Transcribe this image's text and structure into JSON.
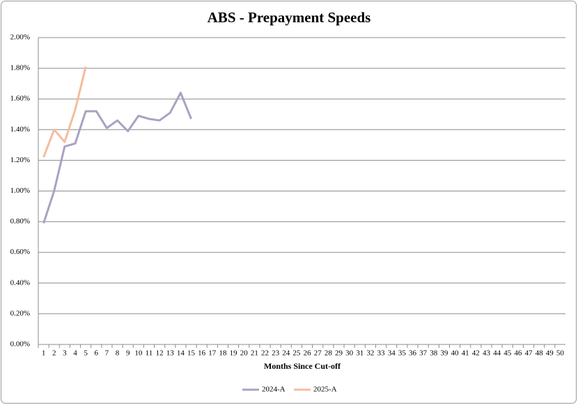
{
  "chart_data": {
    "type": "line",
    "title": "ABS - Prepayment Speeds",
    "x_label": "Months Since Cut-off",
    "categories": [
      1,
      2,
      3,
      4,
      5,
      6,
      7,
      8,
      9,
      10,
      11,
      12,
      13,
      14,
      15,
      16,
      17,
      18,
      19,
      20,
      21,
      22,
      23,
      24,
      25,
      26,
      27,
      28,
      29,
      30,
      31,
      32,
      33,
      34,
      35,
      36,
      37,
      38,
      39,
      40,
      41,
      42,
      43,
      44,
      45,
      46,
      47,
      48,
      49,
      50
    ],
    "series": [
      {
        "name": "2024-A",
        "color": "#a9a1c2",
        "values": [
          0.79,
          1.0,
          1.29,
          1.31,
          1.52,
          1.52,
          1.41,
          1.46,
          1.39,
          1.49,
          1.47,
          1.46,
          1.51,
          1.64,
          1.47,
          null,
          null,
          null,
          null,
          null,
          null,
          null,
          null,
          null,
          null,
          null,
          null,
          null,
          null,
          null,
          null,
          null,
          null,
          null,
          null,
          null,
          null,
          null,
          null,
          null,
          null,
          null,
          null,
          null,
          null,
          null,
          null,
          null,
          null,
          null
        ]
      },
      {
        "name": "2025-A",
        "color": "#f5bc9c",
        "values": [
          1.22,
          1.4,
          1.32,
          1.53,
          1.81,
          null,
          null,
          null,
          null,
          null,
          null,
          null,
          null,
          null,
          null,
          null,
          null,
          null,
          null,
          null,
          null,
          null,
          null,
          null,
          null,
          null,
          null,
          null,
          null,
          null,
          null,
          null,
          null,
          null,
          null,
          null,
          null,
          null,
          null,
          null,
          null,
          null,
          null,
          null,
          null,
          null,
          null,
          null,
          null,
          null
        ]
      }
    ],
    "ylim": [
      0,
      2
    ],
    "yticks": [
      {
        "value": 0,
        "label": "0.00%"
      },
      {
        "value": 0.2,
        "label": "0.20%"
      },
      {
        "value": 0.4,
        "label": "0.40%"
      },
      {
        "value": 0.6,
        "label": "0.60%"
      },
      {
        "value": 0.8,
        "label": "0.80%"
      },
      {
        "value": 1,
        "label": "1.00%"
      },
      {
        "value": 1.2,
        "label": "1.20%"
      },
      {
        "value": 1.4,
        "label": "1.40%"
      },
      {
        "value": 1.6,
        "label": "1.60%"
      },
      {
        "value": 1.8,
        "label": "1.80%"
      },
      {
        "value": 2,
        "label": "2.00%"
      }
    ],
    "grid": true,
    "legend": "bottom"
  }
}
